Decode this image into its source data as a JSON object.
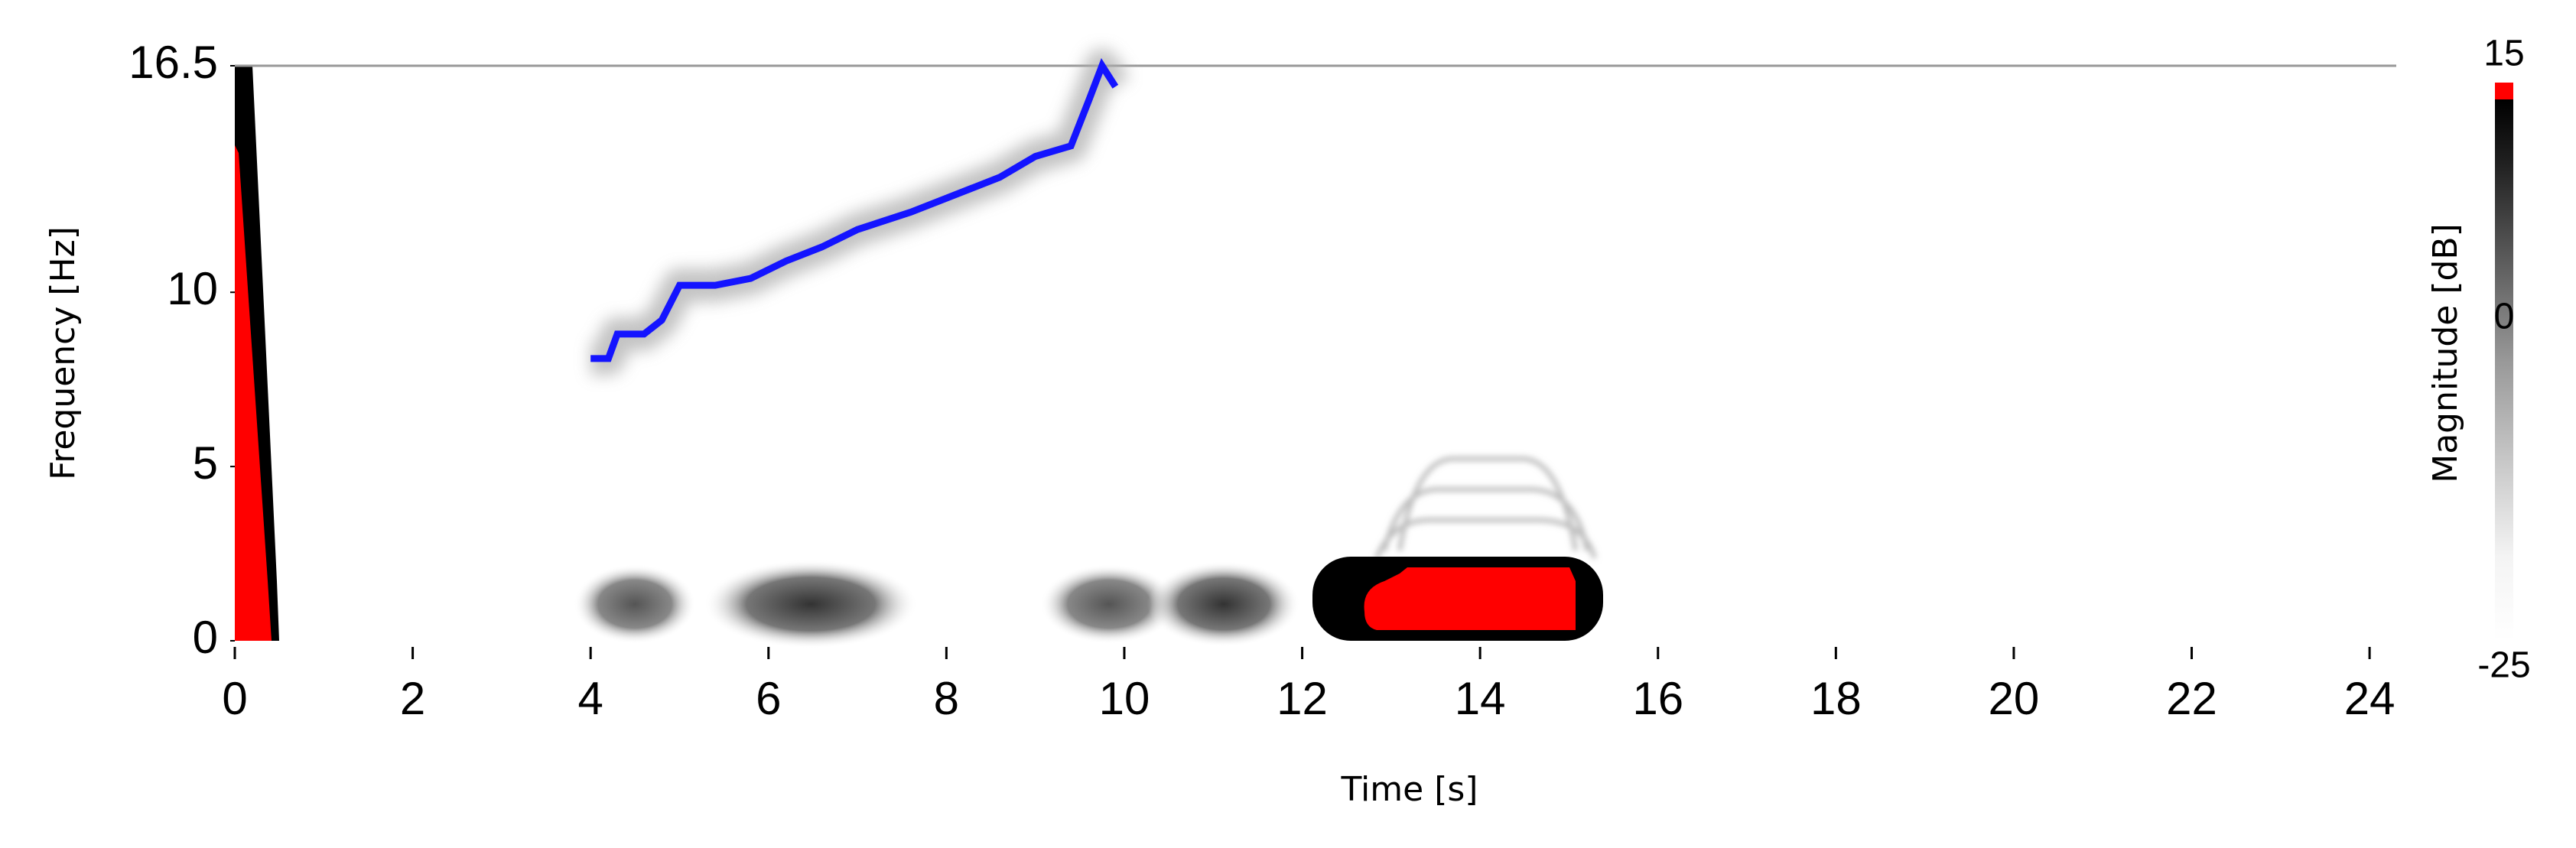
{
  "chart_data": {
    "type": "spectrogram",
    "x_label": "Time [s]",
    "y_label": "Frequency [Hz]",
    "xlim": [
      0,
      24.3
    ],
    "xticks": [
      0,
      2,
      4,
      6,
      8,
      10,
      12,
      14,
      16,
      18,
      20,
      22,
      24
    ],
    "ylim": [
      0,
      16.5
    ],
    "yticks": [
      0,
      5,
      10,
      16.5
    ],
    "x": [
      4.0,
      4.2,
      4.3,
      4.6,
      4.8,
      5.0,
      5.4,
      5.8,
      6.2,
      6.6,
      7.0,
      7.6,
      8.0,
      8.6,
      9.0,
      9.4,
      9.6,
      9.75,
      9.9
    ],
    "values": [
      8.1,
      8.1,
      8.8,
      8.8,
      9.2,
      10.2,
      10.2,
      10.4,
      10.9,
      11.3,
      11.8,
      12.3,
      12.7,
      13.3,
      13.9,
      14.2,
      15.5,
      16.5,
      15.9
    ],
    "color": "#1414ff",
    "colorbar_label": "Magnitude [dB]",
    "clim": [
      -25,
      15
    ],
    "cticks": [
      15,
      0,
      -25
    ]
  }
}
